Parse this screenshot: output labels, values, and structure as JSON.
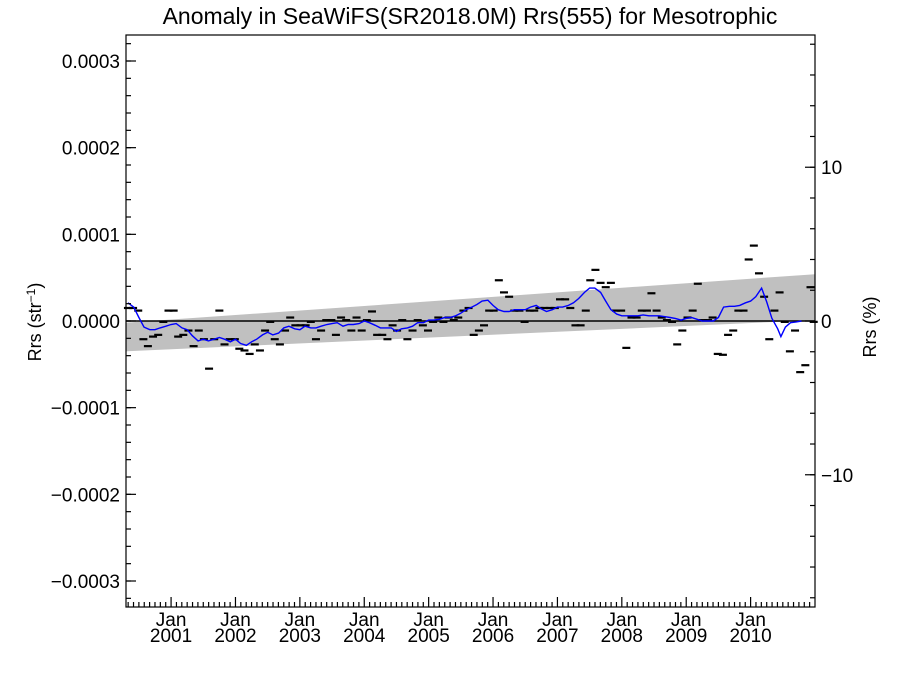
{
  "chart_data": {
    "type": "line",
    "title": "Anomaly in SeaWiFS(SR2018.0M) Rrs(555) for Mesotrophic",
    "ylabel_left": "Rrs (str",
    "ylabel_left_sup": "−1",
    "ylabel_left_end": ")",
    "ylabel_right": "Rrs (%)",
    "xlim": [
      2000.3,
      2011.0
    ],
    "ylim": [
      -0.00033,
      0.00033
    ],
    "y2lim": [
      -18.6,
      18.6
    ],
    "yticks": [
      {
        "value": 0.0003,
        "label": "0.0003"
      },
      {
        "value": 0.0002,
        "label": "0.0002"
      },
      {
        "value": 0.0001,
        "label": "0.0001"
      },
      {
        "value": 0.0,
        "label": "0.0000"
      },
      {
        "value": -0.0001,
        "label": "−0.0001"
      },
      {
        "value": -0.0002,
        "label": "−0.0002"
      },
      {
        "value": -0.0003,
        "label": "−0.0003"
      }
    ],
    "y2ticks": [
      {
        "value": 10,
        "label": "10"
      },
      {
        "value": 0,
        "label": "0"
      },
      {
        "value": -10,
        "label": "−10"
      }
    ],
    "xticks": [
      {
        "value": 2001.0,
        "month": "Jan",
        "year": "2001"
      },
      {
        "value": 2002.0,
        "month": "Jan",
        "year": "2002"
      },
      {
        "value": 2003.0,
        "month": "Jan",
        "year": "2003"
      },
      {
        "value": 2004.0,
        "month": "Jan",
        "year": "2004"
      },
      {
        "value": 2005.0,
        "month": "Jan",
        "year": "2005"
      },
      {
        "value": 2006.0,
        "month": "Jan",
        "year": "2006"
      },
      {
        "value": 2007.0,
        "month": "Jan",
        "year": "2007"
      },
      {
        "value": 2008.0,
        "month": "Jan",
        "year": "2008"
      },
      {
        "value": 2009.0,
        "month": "Jan",
        "year": "2009"
      },
      {
        "value": 2010.0,
        "month": "Jan",
        "year": "2010"
      }
    ],
    "series": [
      {
        "style": "dash markers",
        "color": "#000000",
        "points": [
          [
            2000.33,
            1.5e-05
          ],
          [
            2000.41,
            1.5e-05
          ],
          [
            2000.49,
            1.2e-05
          ],
          [
            2000.57,
            -2.1e-05
          ],
          [
            2000.64,
            -2.9e-05
          ],
          [
            2000.72,
            -1.8e-05
          ],
          [
            2000.8,
            -1.6e-05
          ],
          [
            2000.88,
            -1e-06
          ],
          [
            2000.96,
            1.2e-05
          ],
          [
            2001.04,
            1.2e-05
          ],
          [
            2001.11,
            -1.8e-05
          ],
          [
            2001.19,
            -1.6e-05
          ],
          [
            2001.27,
            -1.1e-05
          ],
          [
            2001.35,
            -2.9e-05
          ],
          [
            2001.43,
            -1.1e-05
          ],
          [
            2001.51,
            -2.1e-05
          ],
          [
            2001.59,
            -5.5e-05
          ],
          [
            2001.67,
            -2.1e-05
          ],
          [
            2001.75,
            1.2e-05
          ],
          [
            2001.83,
            -2.7e-05
          ],
          [
            2001.91,
            -2.1e-05
          ],
          [
            2001.99,
            -2.1e-05
          ],
          [
            2002.06,
            -3.2e-05
          ],
          [
            2002.14,
            -3.4e-05
          ],
          [
            2002.22,
            -3.8e-05
          ],
          [
            2002.3,
            -2.7e-05
          ],
          [
            2002.38,
            -3.4e-05
          ],
          [
            2002.46,
            -1.1e-05
          ],
          [
            2002.54,
            -1e-06
          ],
          [
            2002.61,
            -2.1e-05
          ],
          [
            2002.69,
            -2.7e-05
          ],
          [
            2002.77,
            -1.1e-05
          ],
          [
            2002.85,
            4e-06
          ],
          [
            2002.93,
            -5e-06
          ],
          [
            2003.01,
            -5e-06
          ],
          [
            2003.09,
            -5e-06
          ],
          [
            2003.17,
            -1e-06
          ],
          [
            2003.25,
            -2.1e-05
          ],
          [
            2003.33,
            -1.1e-05
          ],
          [
            2003.41,
            1e-06
          ],
          [
            2003.49,
            1e-06
          ],
          [
            2003.56,
            -1.6e-05
          ],
          [
            2003.64,
            4e-06
          ],
          [
            2003.72,
            1e-06
          ],
          [
            2003.8,
            -1.1e-05
          ],
          [
            2003.88,
            4e-06
          ],
          [
            2003.96,
            -1.1e-05
          ],
          [
            2004.04,
            1e-06
          ],
          [
            2004.12,
            1.1e-05
          ],
          [
            2004.2,
            -1.6e-05
          ],
          [
            2004.28,
            -1.6e-05
          ],
          [
            2004.36,
            -2.1e-05
          ],
          [
            2004.44,
            -5e-06
          ],
          [
            2004.51,
            -1.1e-05
          ],
          [
            2004.59,
            1e-06
          ],
          [
            2004.67,
            -2.1e-05
          ],
          [
            2004.75,
            -1.1e-05
          ],
          [
            2004.83,
            1e-06
          ],
          [
            2004.91,
            -5e-06
          ],
          [
            2004.99,
            -1.1e-05
          ],
          [
            2005.07,
            -1e-06
          ],
          [
            2005.15,
            4e-06
          ],
          [
            2005.23,
            -1e-06
          ],
          [
            2005.31,
            4e-06
          ],
          [
            2005.39,
            1e-06
          ],
          [
            2005.46,
            4e-06
          ],
          [
            2005.54,
            1.2e-05
          ],
          [
            2005.62,
            1.5e-05
          ],
          [
            2005.7,
            -1.6e-05
          ],
          [
            2005.78,
            -1.1e-05
          ],
          [
            2005.86,
            -5e-06
          ],
          [
            2005.94,
            1.2e-05
          ],
          [
            2006.01,
            1.2e-05
          ],
          [
            2006.09,
            4.7e-05
          ],
          [
            2006.17,
            3.3e-05
          ],
          [
            2006.25,
            2.8e-05
          ],
          [
            2006.33,
            1.2e-05
          ],
          [
            2006.41,
            1.2e-05
          ],
          [
            2006.49,
            -1e-06
          ],
          [
            2006.57,
            1.2e-05
          ],
          [
            2006.64,
            1.2e-05
          ],
          [
            2006.72,
            1.5e-05
          ],
          [
            2006.8,
            1.5e-05
          ],
          [
            2006.88,
            1.5e-05
          ],
          [
            2006.96,
            1.5e-05
          ],
          [
            2007.04,
            2.5e-05
          ],
          [
            2007.12,
            2.5e-05
          ],
          [
            2007.2,
            1.5e-05
          ],
          [
            2007.28,
            -5e-06
          ],
          [
            2007.36,
            -5e-06
          ],
          [
            2007.44,
            1.2e-05
          ],
          [
            2007.51,
            4.7e-05
          ],
          [
            2007.59,
            5.9e-05
          ],
          [
            2007.67,
            4.4e-05
          ],
          [
            2007.75,
            3.9e-05
          ],
          [
            2007.83,
            4.4e-05
          ],
          [
            2007.91,
            1.2e-05
          ],
          [
            2007.99,
            1.2e-05
          ],
          [
            2008.07,
            -3.1e-05
          ],
          [
            2008.15,
            4e-06
          ],
          [
            2008.23,
            4e-06
          ],
          [
            2008.31,
            1.2e-05
          ],
          [
            2008.39,
            1.2e-05
          ],
          [
            2008.46,
            3.2e-05
          ],
          [
            2008.54,
            1.2e-05
          ],
          [
            2008.62,
            4e-06
          ],
          [
            2008.7,
            1e-06
          ],
          [
            2008.78,
            -1e-06
          ],
          [
            2008.86,
            -2.7e-05
          ],
          [
            2008.94,
            -1.1e-05
          ],
          [
            2009.02,
            4e-06
          ],
          [
            2009.1,
            1.2e-05
          ],
          [
            2009.18,
            4.3e-05
          ],
          [
            2009.26,
            1e-06
          ],
          [
            2009.34,
            1e-06
          ],
          [
            2009.41,
            4e-06
          ],
          [
            2009.49,
            -3.8e-05
          ],
          [
            2009.57,
            -3.9e-05
          ],
          [
            2009.65,
            -1.6e-05
          ],
          [
            2009.73,
            -1.1e-05
          ],
          [
            2009.81,
            1.2e-05
          ],
          [
            2009.89,
            1.2e-05
          ],
          [
            2009.97,
            7.1e-05
          ],
          [
            2010.05,
            8.7e-05
          ],
          [
            2010.13,
            5.5e-05
          ],
          [
            2010.21,
            2.8e-05
          ],
          [
            2010.29,
            -2.1e-05
          ],
          [
            2010.37,
            1.2e-05
          ],
          [
            2010.45,
            3.3e-05
          ],
          [
            2010.53,
            -1e-06
          ],
          [
            2010.61,
            -3.5e-05
          ],
          [
            2010.69,
            -1.1e-05
          ],
          [
            2010.77,
            -5.9e-05
          ],
          [
            2010.85,
            -5.1e-05
          ],
          [
            2010.93,
            3.9e-05
          ],
          [
            2010.98,
            -1e-06
          ]
        ]
      },
      {
        "style": "line",
        "color": "#0000ff",
        "points": [
          [
            2000.33,
            2.1e-05
          ],
          [
            2000.42,
            1.6e-05
          ],
          [
            2000.5,
            4e-06
          ],
          [
            2000.58,
            -7e-06
          ],
          [
            2000.67,
            -1e-05
          ],
          [
            2000.75,
            -1e-05
          ],
          [
            2000.83,
            -8e-06
          ],
          [
            2000.92,
            -6e-06
          ],
          [
            2001.0,
            -4e-06
          ],
          [
            2001.08,
            -3e-06
          ],
          [
            2001.17,
            -8e-06
          ],
          [
            2001.25,
            -1e-05
          ],
          [
            2001.33,
            -1.7e-05
          ],
          [
            2001.42,
            -2.3e-05
          ],
          [
            2001.5,
            -2.1e-05
          ],
          [
            2001.58,
            -2.3e-05
          ],
          [
            2001.67,
            -2.1e-05
          ],
          [
            2001.75,
            -1.9e-05
          ],
          [
            2001.83,
            -2.1e-05
          ],
          [
            2001.92,
            -2.4e-05
          ],
          [
            2002.0,
            -2.1e-05
          ],
          [
            2002.08,
            -2.6e-05
          ],
          [
            2002.17,
            -2.8e-05
          ],
          [
            2002.25,
            -2.4e-05
          ],
          [
            2002.33,
            -2.1e-05
          ],
          [
            2002.42,
            -1.6e-05
          ],
          [
            2002.5,
            -1.3e-05
          ],
          [
            2002.58,
            -1.6e-05
          ],
          [
            2002.67,
            -1.4e-05
          ],
          [
            2002.75,
            -8e-06
          ],
          [
            2002.83,
            -6e-06
          ],
          [
            2002.92,
            -9e-06
          ],
          [
            2003.0,
            -1e-05
          ],
          [
            2003.08,
            -6e-06
          ],
          [
            2003.17,
            -8e-06
          ],
          [
            2003.25,
            -8e-06
          ],
          [
            2003.33,
            -6e-06
          ],
          [
            2003.42,
            -4e-06
          ],
          [
            2003.5,
            -3e-06
          ],
          [
            2003.58,
            -2e-06
          ],
          [
            2003.67,
            -6e-06
          ],
          [
            2003.75,
            -4e-06
          ],
          [
            2003.83,
            -4e-06
          ],
          [
            2003.92,
            -3e-06
          ],
          [
            2004.0,
            0.0
          ],
          [
            2004.08,
            -2e-06
          ],
          [
            2004.17,
            -5e-06
          ],
          [
            2004.25,
            -8e-06
          ],
          [
            2004.33,
            -8e-06
          ],
          [
            2004.42,
            -8e-06
          ],
          [
            2004.5,
            -1.2e-05
          ],
          [
            2004.58,
            -9e-06
          ],
          [
            2004.67,
            -8e-06
          ],
          [
            2004.75,
            -6e-06
          ],
          [
            2004.83,
            -2e-06
          ],
          [
            2004.92,
            -2e-06
          ],
          [
            2005.0,
            1e-06
          ],
          [
            2005.08,
            1e-06
          ],
          [
            2005.17,
            2e-06
          ],
          [
            2005.25,
            4e-06
          ],
          [
            2005.33,
            4e-06
          ],
          [
            2005.42,
            6e-06
          ],
          [
            2005.5,
            9e-06
          ],
          [
            2005.58,
            1.3e-05
          ],
          [
            2005.67,
            1.6e-05
          ],
          [
            2005.75,
            1.9e-05
          ],
          [
            2005.83,
            2.3e-05
          ],
          [
            2005.92,
            2.4e-05
          ],
          [
            2006.0,
            1.8e-05
          ],
          [
            2006.08,
            1.3e-05
          ],
          [
            2006.17,
            1.1e-05
          ],
          [
            2006.25,
            1.1e-05
          ],
          [
            2006.33,
            1.3e-05
          ],
          [
            2006.42,
            1.3e-05
          ],
          [
            2006.5,
            1.3e-05
          ],
          [
            2006.58,
            1.6e-05
          ],
          [
            2006.67,
            1.8e-05
          ],
          [
            2006.75,
            1.4e-05
          ],
          [
            2006.83,
            1.1e-05
          ],
          [
            2006.92,
            1.3e-05
          ],
          [
            2007.0,
            1.6e-05
          ],
          [
            2007.08,
            1.6e-05
          ],
          [
            2007.17,
            1.8e-05
          ],
          [
            2007.25,
            2.1e-05
          ],
          [
            2007.33,
            2.6e-05
          ],
          [
            2007.42,
            3.3e-05
          ],
          [
            2007.5,
            3.8e-05
          ],
          [
            2007.58,
            3.8e-05
          ],
          [
            2007.67,
            3.3e-05
          ],
          [
            2007.75,
            2.3e-05
          ],
          [
            2007.83,
            1.3e-05
          ],
          [
            2007.92,
            8e-06
          ],
          [
            2008.0,
            6e-06
          ],
          [
            2008.08,
            6e-06
          ],
          [
            2008.17,
            6e-06
          ],
          [
            2008.25,
            6e-06
          ],
          [
            2008.33,
            7e-06
          ],
          [
            2008.42,
            6e-06
          ],
          [
            2008.5,
            6e-06
          ],
          [
            2008.58,
            6e-06
          ],
          [
            2008.67,
            5e-06
          ],
          [
            2008.75,
            4e-06
          ],
          [
            2008.83,
            3e-06
          ],
          [
            2008.92,
            1e-06
          ],
          [
            2009.0,
            3e-06
          ],
          [
            2009.08,
            4e-06
          ],
          [
            2009.17,
            2e-06
          ],
          [
            2009.25,
            0.0
          ],
          [
            2009.33,
            0.0
          ],
          [
            2009.42,
            0.0
          ],
          [
            2009.5,
            4e-06
          ],
          [
            2009.58,
            1.6e-05
          ],
          [
            2009.67,
            1.7e-05
          ],
          [
            2009.75,
            1.7e-05
          ],
          [
            2009.83,
            1.8e-05
          ],
          [
            2009.92,
            2.1e-05
          ],
          [
            2010.0,
            2.3e-05
          ],
          [
            2010.08,
            2.8e-05
          ],
          [
            2010.17,
            3.8e-05
          ],
          [
            2010.25,
            2.2e-05
          ],
          [
            2010.33,
            3e-06
          ],
          [
            2010.42,
            -9e-06
          ],
          [
            2010.47,
            -1.8e-05
          ],
          [
            2010.54,
            -7e-06
          ],
          [
            2010.62,
            -2e-06
          ],
          [
            2010.71,
            -1e-06
          ],
          [
            2010.79,
            0.0
          ]
        ]
      }
    ],
    "band": {
      "color": "#c0c0c0",
      "x": [
        2000.3,
        2011.0
      ],
      "upper": [
        -2e-06,
        5.4e-05
      ],
      "lower": [
        -3.5e-05,
        1e-06
      ]
    },
    "zero_line": 0.0
  }
}
